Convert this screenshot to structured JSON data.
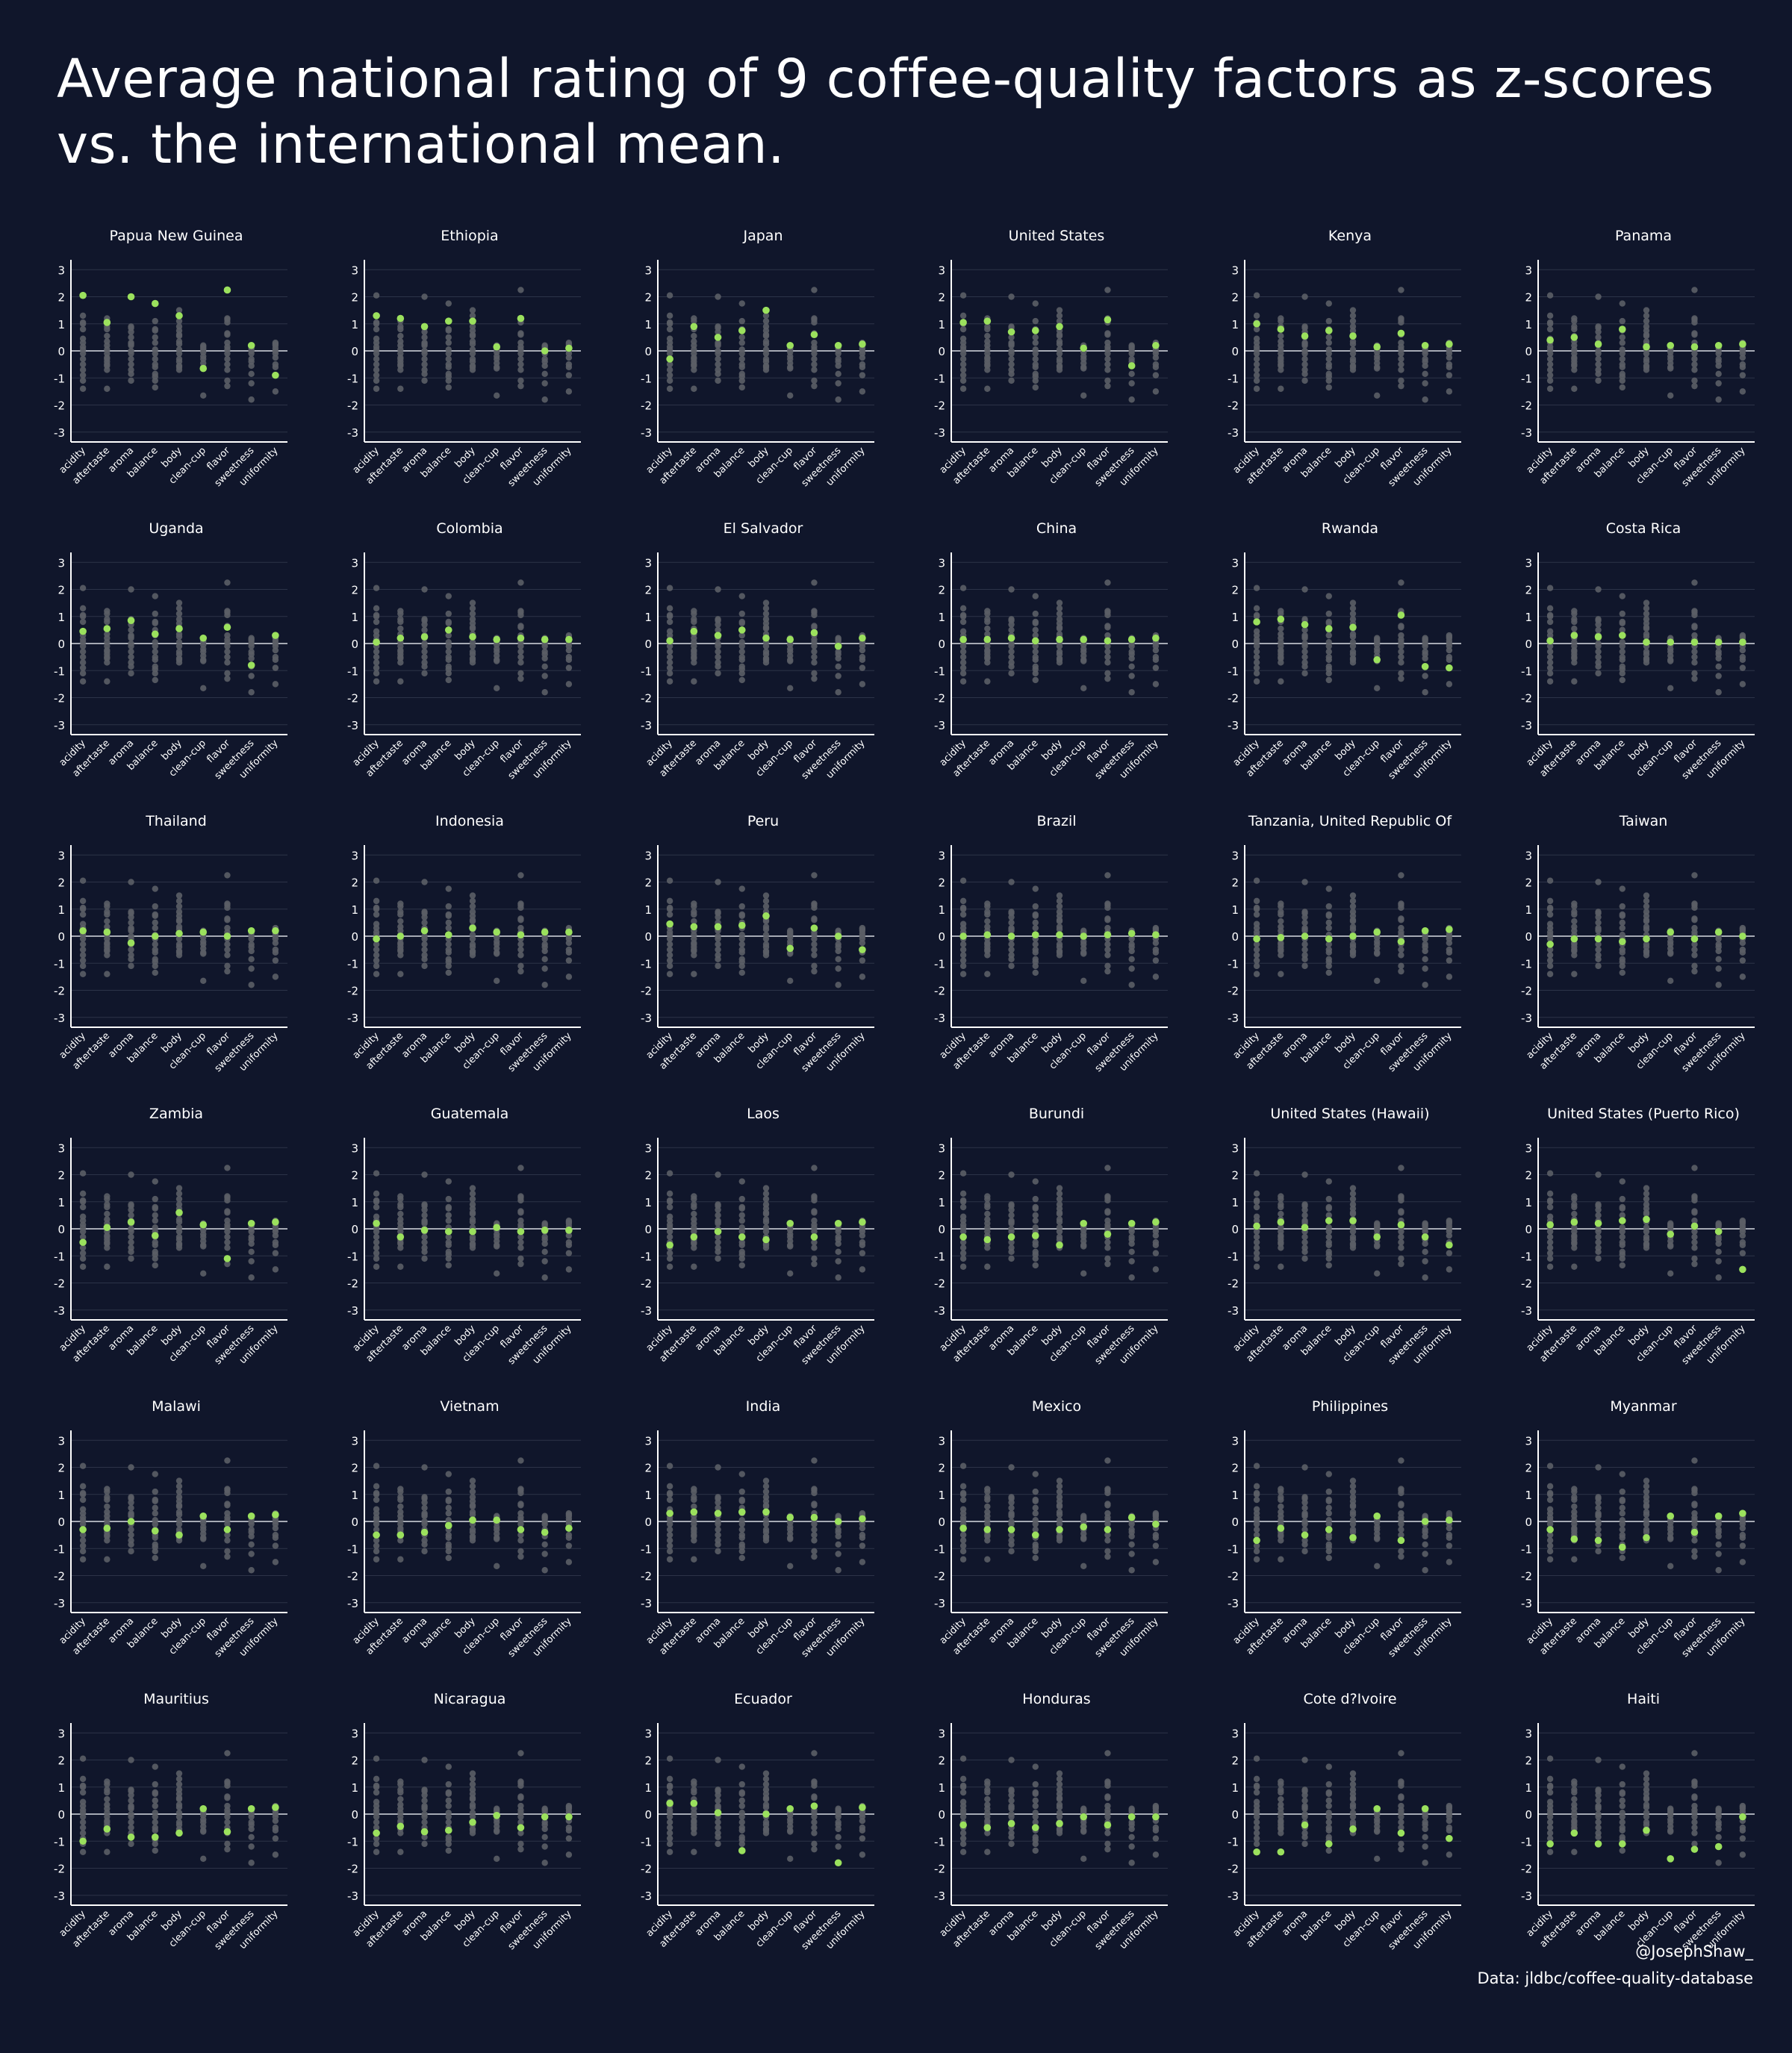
{
  "title": "Average national rating of 9 coffee-quality factors as z-scores vs. the international mean.",
  "credit": "@JosephShaw_",
  "source": "Data: jldbc/coffee-quality-database",
  "colors": {
    "background": "#10162b",
    "highlight": "#9be15d",
    "background_points": "#5b5e66",
    "grid": "#2c3348",
    "axis": "#ffffff"
  },
  "chart_data": {
    "type": "scatter",
    "layout": "small-multiples",
    "factors": [
      "acidity",
      "aftertaste",
      "aroma",
      "balance",
      "body",
      "clean-cup",
      "flavor",
      "sweetness",
      "uniformity"
    ],
    "yticks": [
      -3,
      -2,
      -1,
      0,
      1,
      2,
      3
    ],
    "ylim": [
      -3.2,
      3.2
    ],
    "grid": true,
    "countries": [
      {
        "name": "Papua New Guinea",
        "values": [
          2.05,
          1.05,
          2.0,
          1.75,
          1.3,
          -0.65,
          2.25,
          0.2,
          -0.9
        ]
      },
      {
        "name": "Ethiopia",
        "values": [
          1.3,
          1.2,
          0.9,
          1.1,
          1.1,
          0.15,
          1.2,
          0.0,
          0.1
        ]
      },
      {
        "name": "Japan",
        "values": [
          -0.3,
          0.9,
          0.5,
          0.75,
          1.5,
          0.2,
          0.6,
          0.2,
          0.25
        ]
      },
      {
        "name": "United States",
        "values": [
          1.05,
          1.1,
          0.7,
          0.75,
          0.9,
          0.1,
          1.15,
          -0.55,
          0.2
        ]
      },
      {
        "name": "Kenya",
        "values": [
          1.0,
          0.8,
          0.55,
          0.75,
          0.55,
          0.15,
          0.65,
          0.2,
          0.25
        ]
      },
      {
        "name": "Panama",
        "values": [
          0.4,
          0.5,
          0.25,
          0.8,
          0.15,
          0.2,
          0.15,
          0.2,
          0.25
        ]
      },
      {
        "name": "Uganda",
        "values": [
          0.45,
          0.55,
          0.85,
          0.35,
          0.55,
          0.2,
          0.6,
          -0.8,
          0.3
        ]
      },
      {
        "name": "Colombia",
        "values": [
          0.05,
          0.2,
          0.25,
          0.5,
          0.25,
          0.15,
          0.2,
          0.15,
          0.15
        ]
      },
      {
        "name": "El Salvador",
        "values": [
          0.1,
          0.45,
          0.3,
          0.5,
          0.2,
          0.15,
          0.4,
          -0.1,
          0.2
        ]
      },
      {
        "name": "China",
        "values": [
          0.15,
          0.15,
          0.2,
          0.1,
          0.15,
          0.15,
          0.1,
          0.15,
          0.2
        ]
      },
      {
        "name": "Rwanda",
        "values": [
          0.8,
          0.9,
          0.7,
          0.55,
          0.6,
          -0.6,
          1.05,
          -0.85,
          -0.9
        ]
      },
      {
        "name": "Costa Rica",
        "values": [
          0.1,
          0.3,
          0.25,
          0.3,
          0.05,
          0.05,
          0.05,
          0.05,
          0.05
        ]
      },
      {
        "name": "Thailand",
        "values": [
          0.2,
          0.15,
          -0.25,
          0.0,
          0.1,
          0.15,
          0.0,
          0.2,
          0.2
        ]
      },
      {
        "name": "Indonesia",
        "values": [
          -0.1,
          0.0,
          0.2,
          0.05,
          0.3,
          0.15,
          0.05,
          0.15,
          0.15
        ]
      },
      {
        "name": "Peru",
        "values": [
          0.45,
          0.35,
          0.35,
          0.4,
          0.75,
          -0.45,
          0.3,
          0.0,
          -0.5
        ]
      },
      {
        "name": "Brazil",
        "values": [
          0.0,
          0.05,
          0.0,
          0.05,
          0.05,
          0.0,
          0.05,
          0.1,
          0.05
        ]
      },
      {
        "name": "Tanzania, United Republic Of",
        "values": [
          -0.1,
          -0.05,
          0.0,
          -0.1,
          0.0,
          0.15,
          -0.2,
          0.2,
          0.25
        ]
      },
      {
        "name": "Taiwan",
        "values": [
          -0.3,
          -0.1,
          -0.1,
          -0.2,
          -0.1,
          0.15,
          -0.1,
          0.15,
          0.0
        ]
      },
      {
        "name": "Zambia",
        "values": [
          -0.5,
          0.05,
          0.25,
          -0.25,
          0.6,
          0.15,
          -1.1,
          0.2,
          0.25
        ]
      },
      {
        "name": "Guatemala",
        "values": [
          0.2,
          -0.3,
          -0.05,
          -0.1,
          -0.1,
          0.05,
          -0.1,
          -0.05,
          -0.05
        ]
      },
      {
        "name": "Laos",
        "values": [
          -0.6,
          -0.3,
          -0.1,
          -0.3,
          -0.4,
          0.2,
          -0.3,
          0.2,
          0.25
        ]
      },
      {
        "name": "Burundi",
        "values": [
          -0.3,
          -0.4,
          -0.3,
          -0.25,
          -0.6,
          0.2,
          -0.2,
          0.2,
          0.25
        ]
      },
      {
        "name": "United States (Hawaii)",
        "values": [
          0.1,
          0.25,
          0.05,
          0.3,
          0.3,
          -0.3,
          0.15,
          -0.3,
          -0.6
        ]
      },
      {
        "name": "United States (Puerto Rico)",
        "values": [
          0.15,
          0.25,
          0.2,
          0.3,
          0.35,
          -0.2,
          0.1,
          -0.1,
          -1.5
        ]
      },
      {
        "name": "Malawi",
        "values": [
          -0.3,
          -0.25,
          0.0,
          -0.35,
          -0.5,
          0.2,
          -0.3,
          0.2,
          0.25
        ]
      },
      {
        "name": "Vietnam",
        "values": [
          -0.5,
          -0.5,
          -0.4,
          -0.15,
          0.05,
          0.05,
          -0.3,
          -0.4,
          -0.25
        ]
      },
      {
        "name": "India",
        "values": [
          0.3,
          0.35,
          0.3,
          0.35,
          0.35,
          0.15,
          0.15,
          0.0,
          0.1
        ]
      },
      {
        "name": "Mexico",
        "values": [
          -0.25,
          -0.3,
          -0.3,
          -0.5,
          -0.3,
          -0.2,
          -0.3,
          0.15,
          -0.1
        ]
      },
      {
        "name": "Philippines",
        "values": [
          -0.7,
          -0.25,
          -0.5,
          -0.3,
          -0.6,
          0.2,
          -0.7,
          0.0,
          0.05
        ]
      },
      {
        "name": "Myanmar",
        "values": [
          -0.3,
          -0.65,
          -0.7,
          -0.95,
          -0.6,
          0.2,
          -0.4,
          0.2,
          0.3
        ]
      },
      {
        "name": "Mauritius",
        "values": [
          -1.0,
          -0.55,
          -0.85,
          -0.85,
          -0.7,
          0.2,
          -0.65,
          0.2,
          0.25
        ]
      },
      {
        "name": "Nicaragua",
        "values": [
          -0.7,
          -0.45,
          -0.65,
          -0.6,
          -0.3,
          -0.05,
          -0.5,
          -0.1,
          -0.1
        ]
      },
      {
        "name": "Ecuador",
        "values": [
          0.4,
          0.4,
          0.05,
          -1.35,
          0.0,
          0.2,
          0.3,
          -1.8,
          0.25
        ]
      },
      {
        "name": "Honduras",
        "values": [
          -0.4,
          -0.5,
          -0.35,
          -0.5,
          -0.35,
          -0.1,
          -0.4,
          -0.1,
          -0.1
        ]
      },
      {
        "name": "Cote d?Ivoire",
        "values": [
          -1.4,
          -1.4,
          -0.4,
          -1.1,
          -0.55,
          0.2,
          -0.7,
          0.2,
          -0.9
        ]
      },
      {
        "name": "Haiti",
        "values": [
          -1.1,
          -0.7,
          -1.1,
          -1.1,
          -0.6,
          -1.65,
          -1.3,
          -1.2,
          -0.1
        ]
      }
    ],
    "background_distribution": [
      [
        -1.4,
        -1.1,
        -0.9,
        -0.7,
        -0.5,
        -0.3,
        -0.1,
        0.05,
        0.15,
        0.3,
        0.45,
        0.8,
        1.0,
        1.05,
        1.3,
        2.05
      ],
      [
        -1.4,
        -0.7,
        -0.55,
        -0.5,
        -0.4,
        -0.3,
        -0.25,
        -0.1,
        0.05,
        0.2,
        0.35,
        0.55,
        0.8,
        0.9,
        1.1,
        1.2
      ],
      [
        -1.1,
        -0.85,
        -0.7,
        -0.5,
        -0.3,
        -0.1,
        0.0,
        0.2,
        0.25,
        0.3,
        0.5,
        0.7,
        0.85,
        0.9,
        2.0
      ],
      [
        -1.35,
        -1.1,
        -0.95,
        -0.85,
        -0.6,
        -0.5,
        -0.3,
        -0.1,
        0.05,
        0.3,
        0.5,
        0.75,
        0.8,
        1.1,
        1.75
      ],
      [
        -0.7,
        -0.6,
        -0.55,
        -0.4,
        -0.3,
        -0.1,
        0.05,
        0.25,
        0.35,
        0.55,
        0.6,
        0.75,
        0.9,
        1.1,
        1.3,
        1.5
      ],
      [
        -1.65,
        -0.65,
        -0.6,
        -0.45,
        -0.3,
        -0.2,
        -0.05,
        0.05,
        0.1,
        0.15,
        0.2
      ],
      [
        -1.3,
        -1.1,
        -0.7,
        -0.5,
        -0.3,
        -0.1,
        0.05,
        0.15,
        0.3,
        0.6,
        0.65,
        1.05,
        1.15,
        1.2,
        2.25
      ],
      [
        -1.8,
        -1.2,
        -0.85,
        -0.55,
        -0.4,
        -0.3,
        -0.1,
        0.0,
        0.1,
        0.15,
        0.2
      ],
      [
        -1.5,
        -0.9,
        -0.6,
        -0.5,
        -0.25,
        -0.1,
        0.0,
        0.1,
        0.2,
        0.25,
        0.3
      ]
    ]
  }
}
